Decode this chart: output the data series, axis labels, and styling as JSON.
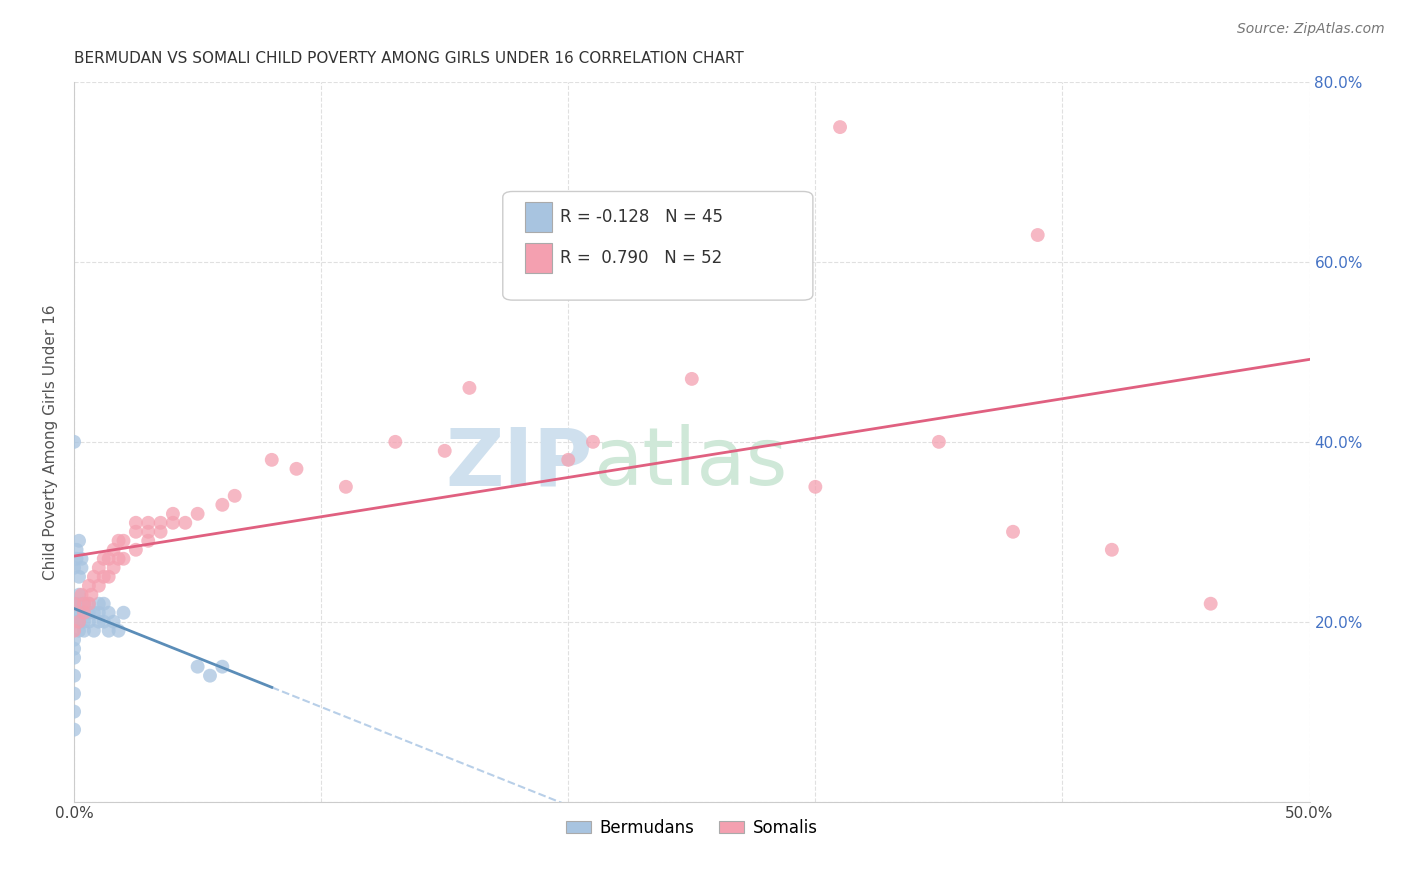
{
  "title": "BERMUDAN VS SOMALI CHILD POVERTY AMONG GIRLS UNDER 16 CORRELATION CHART",
  "source": "Source: ZipAtlas.com",
  "ylabel": "Child Poverty Among Girls Under 16",
  "xlim": [
    0.0,
    0.5
  ],
  "ylim": [
    0.0,
    0.8
  ],
  "blue_color": "#a8c4e0",
  "pink_color": "#f4a0b0",
  "blue_line_color": "#5b8db8",
  "pink_line_color": "#e06080",
  "blue_dashed_color": "#b8cfe8",
  "watermark_zip_color": "#cfe0ee",
  "watermark_atlas_color": "#cfe8d8",
  "grid_color": "#cccccc",
  "title_color": "#333333",
  "right_tick_color": "#4472c4",
  "bermudans_x": [
    0.0,
    0.0,
    0.0,
    0.0,
    0.0,
    0.0,
    0.0,
    0.0,
    0.002,
    0.002,
    0.002,
    0.002,
    0.002,
    0.002,
    0.004,
    0.004,
    0.004,
    0.004,
    0.006,
    0.006,
    0.006,
    0.008,
    0.008,
    0.01,
    0.01,
    0.01,
    0.012,
    0.012,
    0.014,
    0.014,
    0.016,
    0.018,
    0.02,
    0.0,
    0.001,
    0.001,
    0.002,
    0.003,
    0.003,
    0.05,
    0.055,
    0.06,
    0.0,
    0.0,
    0.0
  ],
  "bermudans_y": [
    0.2,
    0.21,
    0.22,
    0.18,
    0.17,
    0.16,
    0.14,
    0.12,
    0.21,
    0.22,
    0.2,
    0.19,
    0.25,
    0.23,
    0.21,
    0.2,
    0.22,
    0.19,
    0.21,
    0.2,
    0.22,
    0.21,
    0.19,
    0.22,
    0.2,
    0.21,
    0.2,
    0.22,
    0.19,
    0.21,
    0.2,
    0.19,
    0.21,
    0.26,
    0.27,
    0.28,
    0.29,
    0.27,
    0.26,
    0.15,
    0.14,
    0.15,
    0.4,
    0.1,
    0.08
  ],
  "somalis_x": [
    0.0,
    0.0,
    0.002,
    0.003,
    0.004,
    0.004,
    0.006,
    0.006,
    0.007,
    0.008,
    0.01,
    0.01,
    0.012,
    0.012,
    0.014,
    0.014,
    0.016,
    0.016,
    0.018,
    0.018,
    0.02,
    0.02,
    0.025,
    0.025,
    0.025,
    0.03,
    0.03,
    0.03,
    0.035,
    0.035,
    0.04,
    0.04,
    0.045,
    0.05,
    0.06,
    0.065,
    0.08,
    0.09,
    0.11,
    0.13,
    0.15,
    0.16,
    0.2,
    0.21,
    0.25,
    0.3,
    0.31,
    0.35,
    0.38,
    0.39,
    0.42,
    0.46
  ],
  "somalis_y": [
    0.19,
    0.22,
    0.2,
    0.23,
    0.21,
    0.22,
    0.22,
    0.24,
    0.23,
    0.25,
    0.24,
    0.26,
    0.25,
    0.27,
    0.25,
    0.27,
    0.26,
    0.28,
    0.27,
    0.29,
    0.27,
    0.29,
    0.28,
    0.3,
    0.31,
    0.29,
    0.31,
    0.3,
    0.3,
    0.31,
    0.31,
    0.32,
    0.31,
    0.32,
    0.33,
    0.34,
    0.38,
    0.37,
    0.35,
    0.4,
    0.39,
    0.46,
    0.38,
    0.4,
    0.47,
    0.35,
    0.75,
    0.4,
    0.3,
    0.63,
    0.28,
    0.22
  ]
}
